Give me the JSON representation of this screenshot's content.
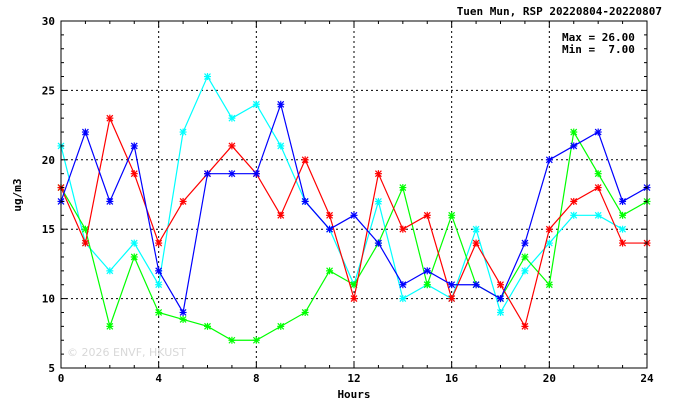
{
  "chart_data": {
    "type": "line",
    "title": "Tuen Mun, RSP 20220804-20220807",
    "xlabel": "Hours",
    "ylabel": "ug/m3",
    "xlim": [
      0,
      24
    ],
    "ylim": [
      5,
      30
    ],
    "x_ticks": [
      0,
      4,
      8,
      12,
      16,
      20,
      24
    ],
    "y_ticks": [
      5,
      10,
      15,
      20,
      25,
      30
    ],
    "grid": true,
    "stats": {
      "max_label": "Max = 26.00",
      "min_label": "Min =  7.00"
    },
    "watermark": "© 2026 ENVF, HKUST",
    "series": [
      {
        "color": "#00ffff",
        "marker": "x",
        "values": [
          21,
          14,
          12,
          14,
          11,
          22,
          26,
          23,
          24,
          21,
          17,
          15,
          11,
          17,
          10,
          11,
          10,
          15,
          9,
          12,
          14,
          16,
          16,
          15
        ]
      },
      {
        "color": "#00ff00",
        "marker": "x",
        "values": [
          18,
          15,
          8,
          13,
          9,
          8.5,
          8,
          7,
          7,
          8,
          9,
          12,
          11,
          14,
          18,
          11,
          16,
          11,
          10,
          13,
          11,
          22,
          19,
          16,
          17
        ]
      },
      {
        "color": "#ff0000",
        "marker": "x",
        "values": [
          18,
          14,
          23,
          19,
          14,
          17,
          19,
          21,
          19,
          16,
          20,
          16,
          10,
          19,
          15,
          16,
          10,
          14,
          11,
          8,
          15,
          17,
          18,
          14,
          14
        ]
      },
      {
        "color": "#0000ff",
        "marker": "x",
        "values": [
          17,
          22,
          17,
          21,
          12,
          9,
          19,
          19,
          19,
          24,
          17,
          15,
          16,
          14,
          11,
          12,
          11,
          11,
          10,
          14,
          20,
          21,
          22,
          17,
          18
        ]
      }
    ]
  }
}
